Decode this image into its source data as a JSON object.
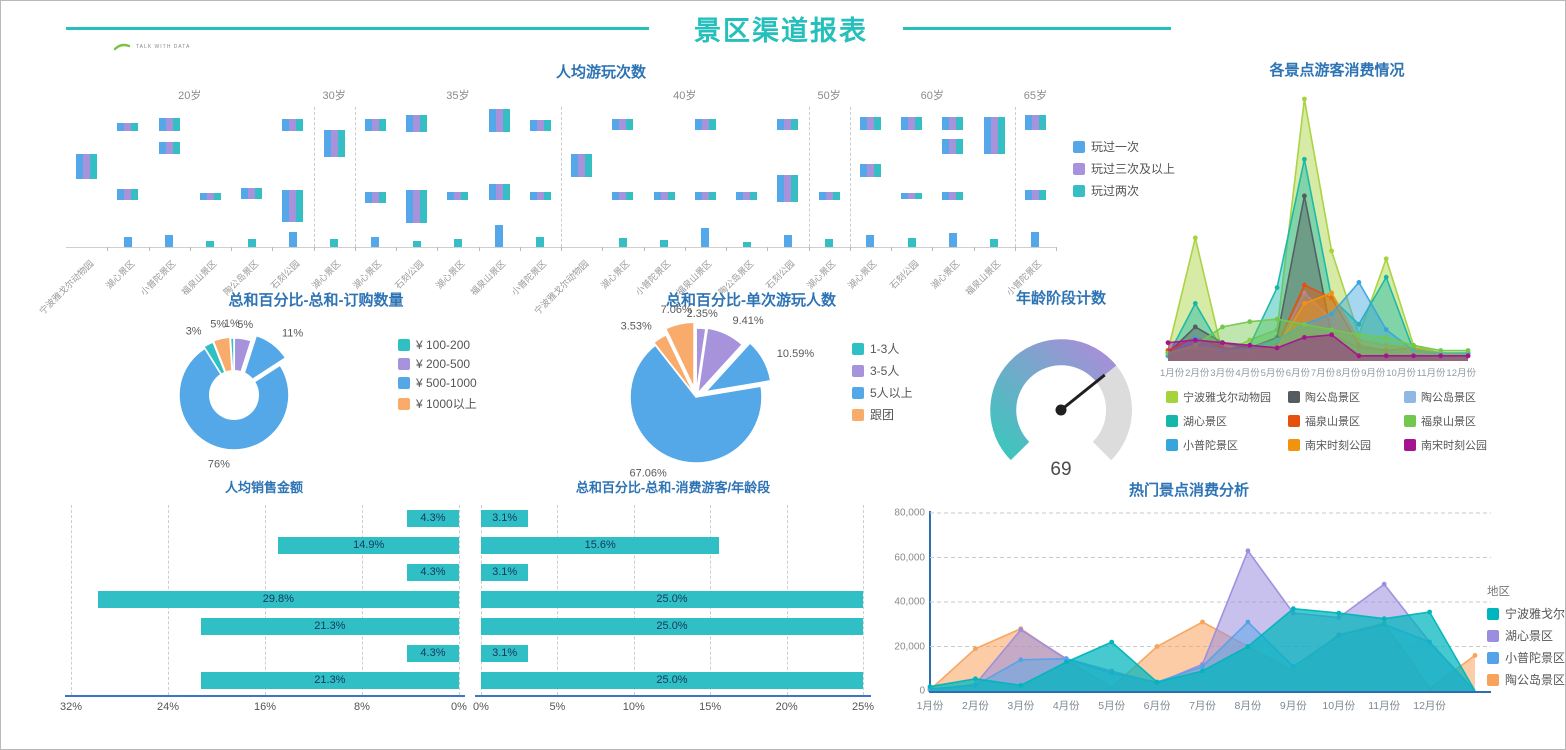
{
  "header": {
    "title": "景区渠道报表",
    "accent_color": "#26c0bc"
  },
  "logo": {
    "text": "TALK WITH DATA"
  },
  "months": [
    "1月份",
    "2月份",
    "3月份",
    "4月份",
    "5月份",
    "6月份",
    "7月份",
    "8月份",
    "9月份",
    "10月份",
    "11月份",
    "12月份"
  ],
  "chart_data": [
    {
      "id": "play-times",
      "type": "bar",
      "title": "人均游玩次数",
      "legend": [
        {
          "label": "玩过一次",
          "color": "#54a7e8"
        },
        {
          "label": "玩过三次及以上",
          "color": "#a693dc"
        },
        {
          "label": "玩过两次",
          "color": "#35bfc4"
        }
      ],
      "age_groups": [
        {
          "label": "20岁",
          "span": 6
        },
        {
          "label": "30岁",
          "span": 1
        },
        {
          "label": "35岁",
          "span": 5
        },
        {
          "label": "40岁",
          "span": 6
        },
        {
          "label": "50岁",
          "span": 1
        },
        {
          "label": "60岁",
          "span": 4
        },
        {
          "label": "65岁",
          "span": 1
        }
      ],
      "categories": [
        "宁波雅戈尔动物园",
        "湖心景区",
        "小普陀景区",
        "福泉山景区",
        "陶公岛景区",
        "石刻公园",
        "湖心景区",
        "湖心景区",
        "石刻公园",
        "湖心景区",
        "福泉山景区",
        "小普陀景区",
        "宁波雅戈尔动物园",
        "湖心景区",
        "小普陀景区",
        "福泉山景区",
        "陶公岛景区",
        "石刻公园",
        "湖心景区",
        "湖心景区",
        "石刻公园",
        "湖心景区",
        "福泉山景区",
        "小普陀景区"
      ],
      "clusters": [
        {
          "bars": [
            [
              47,
              25
            ]
          ]
        },
        {
          "bars": [
            [
              16,
              8
            ],
            [
              82,
              11
            ]
          ],
          "low": [
            "b",
            10
          ]
        },
        {
          "bars": [
            [
              11,
              13
            ],
            [
              35,
              12
            ]
          ],
          "low": [
            "b",
            12
          ]
        },
        {
          "bars": [
            [
              86,
              7
            ]
          ],
          "low": [
            "t",
            6
          ]
        },
        {
          "bars": [
            [
              81,
              11
            ]
          ],
          "low": [
            "t",
            8
          ]
        },
        {
          "bars": [
            [
              12,
              12
            ],
            [
              83,
              32
            ]
          ],
          "low": [
            "b",
            15
          ]
        },
        {
          "bars": [
            [
              23,
              27
            ]
          ],
          "low": [
            "t",
            8
          ]
        },
        {
          "bars": [
            [
              12,
              12
            ],
            [
              85,
              11
            ]
          ],
          "low": [
            "b",
            10
          ]
        },
        {
          "bars": [
            [
              8,
              17
            ],
            [
              83,
              33
            ]
          ],
          "low": [
            "t",
            6
          ]
        },
        {
          "bars": [
            [
              85,
              8
            ]
          ],
          "low": [
            "t",
            8
          ]
        },
        {
          "bars": [
            [
              2,
              23
            ],
            [
              77,
              16
            ]
          ],
          "low": [
            "b",
            22
          ]
        },
        {
          "bars": [
            [
              13,
              11
            ],
            [
              85,
              8
            ]
          ],
          "low": [
            "t",
            10
          ]
        },
        {
          "bars": [
            [
              47,
              23
            ]
          ]
        },
        {
          "bars": [
            [
              12,
              11
            ],
            [
              85,
              8
            ]
          ],
          "low": [
            "t",
            9
          ]
        },
        {
          "bars": [
            [
              85,
              8
            ]
          ],
          "low": [
            "t",
            7
          ]
        },
        {
          "bars": [
            [
              12,
              11
            ],
            [
              85,
              8
            ]
          ],
          "low": [
            "b",
            19
          ]
        },
        {
          "bars": [
            [
              85,
              8
            ]
          ],
          "low": [
            "t",
            5
          ]
        },
        {
          "bars": [
            [
              12,
              11
            ],
            [
              68,
              27
            ]
          ],
          "low": [
            "b",
            12
          ]
        },
        {
          "bars": [
            [
              85,
              8
            ]
          ],
          "low": [
            "t",
            8
          ]
        },
        {
          "bars": [
            [
              10,
              13
            ],
            [
              57,
              13
            ]
          ],
          "low": [
            "b",
            12
          ]
        },
        {
          "bars": [
            [
              10,
              13
            ],
            [
              86,
              6
            ]
          ],
          "low": [
            "t",
            9
          ]
        },
        {
          "bars": [
            [
              10,
              13
            ],
            [
              32,
              15
            ],
            [
              85,
              8
            ]
          ],
          "low": [
            "b",
            14
          ]
        },
        {
          "bars": [
            [
              10,
              13
            ],
            [
              23,
              24
            ]
          ],
          "low": [
            "t",
            8
          ]
        },
        {
          "bars": [
            [
              8,
              15
            ],
            [
              83,
              10
            ]
          ],
          "low": [
            "b",
            15
          ]
        }
      ]
    },
    {
      "id": "scenic-consumption",
      "type": "area",
      "title": "各景点游客消费情况",
      "ylim": [
        0,
        100
      ],
      "grid": false,
      "legend_position": "bottom",
      "series": [
        {
          "name": "宁波雅戈尔动物园",
          "color": "#a6d23c",
          "values": [
            4,
            47,
            3,
            8,
            12,
            100,
            42,
            10,
            39,
            6,
            3,
            3
          ]
        },
        {
          "name": "湖心景区",
          "color": "#16b7a8",
          "values": [
            2,
            22,
            4,
            6,
            28,
            77,
            24,
            14,
            32,
            4,
            2,
            3
          ]
        },
        {
          "name": "陶公岛景区",
          "color": "#565b60",
          "values": [
            3,
            13,
            7,
            5,
            9,
            63,
            10,
            5,
            4,
            3,
            2,
            2
          ]
        },
        {
          "name": "陶公岛景区",
          "color": "#8fb9e4",
          "values": [
            2,
            6,
            4,
            4,
            5,
            26,
            16,
            6,
            4,
            3,
            2,
            2
          ]
        },
        {
          "name": "福泉山景区",
          "color": "#e6500f",
          "values": [
            4,
            9,
            5,
            4,
            6,
            29,
            24,
            6,
            4,
            5,
            2,
            2
          ]
        },
        {
          "name": "南宋时刻公园",
          "color": "#f2930d",
          "values": [
            3,
            5,
            4,
            4,
            5,
            22,
            26,
            8,
            6,
            5,
            3,
            2
          ]
        },
        {
          "name": "小普陀景区",
          "color": "#39a5dd",
          "values": [
            2,
            9,
            4,
            5,
            8,
            14,
            18,
            30,
            12,
            4,
            3,
            3
          ]
        },
        {
          "name": "福泉山景区",
          "color": "#72c84e",
          "values": [
            3,
            6,
            13,
            15,
            16,
            14,
            12,
            10,
            9,
            6,
            4,
            4
          ]
        },
        {
          "name": "南宋时刻公园",
          "color": "#a4148e",
          "values": [
            7,
            8,
            7,
            6,
            5,
            9,
            10,
            2,
            2,
            2,
            2,
            2
          ]
        }
      ],
      "legend": [
        {
          "label": "宁波雅戈尔动物园",
          "color": "#a6d23c"
        },
        {
          "label": "陶公岛景区",
          "color": "#565b60"
        },
        {
          "label": "陶公岛景区",
          "color": "#8fb9e4"
        },
        {
          "label": "湖心景区",
          "color": "#16b7a8"
        },
        {
          "label": "福泉山景区",
          "color": "#e6500f"
        },
        {
          "label": "福泉山景区",
          "color": "#72c84e"
        },
        {
          "label": "小普陀景区",
          "color": "#39a5dd"
        },
        {
          "label": "南宋时刻公园",
          "color": "#f2930d"
        },
        {
          "label": "南宋时刻公园",
          "color": "#a4148e"
        }
      ]
    },
    {
      "id": "order-quantity",
      "type": "pie",
      "title": "总和百分比-总和-订购数量",
      "donut": true,
      "slices": [
        {
          "label": "5%",
          "value": 5,
          "color": "#a693dc",
          "explode": 2
        },
        {
          "label": "11%",
          "value": 11,
          "color": "#55a8e8",
          "explode": 9
        },
        {
          "label": "76%",
          "value": 76,
          "color": "#55a8e8",
          "explode": 0
        },
        {
          "label": "3%",
          "value": 3,
          "color": "#2ec0c2",
          "explode": 2
        },
        {
          "label": "5%",
          "value": 5,
          "color": "#f8ab6b",
          "explode": 3
        },
        {
          "label": "1%",
          "value": 1,
          "color": "#2ec0c2",
          "explode": 2
        }
      ],
      "legend": [
        {
          "label": "¥ 100-200",
          "color": "#2ec0c2"
        },
        {
          "label": "¥ 200-500",
          "color": "#a693dc"
        },
        {
          "label": "¥ 500-1000",
          "color": "#55a8e8"
        },
        {
          "label": "¥ 1000以上",
          "color": "#f8ab6b"
        }
      ]
    },
    {
      "id": "single-visit-people",
      "type": "pie",
      "title": "总和百分比-单次游玩人数",
      "donut": false,
      "slices": [
        {
          "label": "2.35%",
          "value": 2.35,
          "color": "#a693dc",
          "explode": 3
        },
        {
          "label": "9.41%",
          "value": 9.41,
          "color": "#a693dc",
          "explode": 4
        },
        {
          "label": "10.59%",
          "value": 10.59,
          "color": "#55a8e8",
          "explode": 11
        },
        {
          "label": "67.06%",
          "value": 67.06,
          "color": "#55a8e8",
          "explode": 0
        },
        {
          "label": "3.53%",
          "value": 3.53,
          "color": "#f8ab6b",
          "explode": 3
        },
        {
          "label": "7.06%",
          "value": 7.06,
          "color": "#f8ab6b",
          "explode": 9
        }
      ],
      "legend": [
        {
          "label": "1-3人",
          "color": "#2ec0c2"
        },
        {
          "label": "3-5人",
          "color": "#a693dc"
        },
        {
          "label": "5人以上",
          "color": "#55a8e8"
        },
        {
          "label": "跟团",
          "color": "#f8ab6b"
        }
      ]
    },
    {
      "id": "age-gauge",
      "type": "gauge",
      "title": "年龄阶段计数",
      "value": 69,
      "colors": {
        "start": "#3fc4bd",
        "end": "#a78fd8",
        "rest": "#dcdcdc",
        "needle": "#1f1f1f"
      }
    },
    {
      "id": "per-capita-sales",
      "type": "bar",
      "title": "人均销售金额",
      "color": "#30bfc4",
      "xmax": 32,
      "reversed": true,
      "values": [
        4.3,
        14.9,
        4.3,
        29.8,
        21.3,
        4.3,
        21.3
      ],
      "labels": [
        "4.3%",
        "14.9%",
        "4.3%",
        "29.8%",
        "21.3%",
        "4.3%",
        "21.3%"
      ],
      "axis": [
        "32%",
        "24%",
        "16%",
        "8%",
        "0%"
      ]
    },
    {
      "id": "consume-by-age",
      "type": "bar",
      "title": "总和百分比-总和-消费游客/年龄段",
      "color": "#30bfc4",
      "xmax": 25,
      "reversed": false,
      "values": [
        3.1,
        15.6,
        3.1,
        25.0,
        25.0,
        3.1,
        25.0
      ],
      "labels": [
        "3.1%",
        "15.6%",
        "3.1%",
        "25.0%",
        "25.0%",
        "3.1%",
        "25.0%"
      ],
      "axis": [
        "0%",
        "5%",
        "10%",
        "15%",
        "20%",
        "25%"
      ]
    },
    {
      "id": "hot-spot-consumption",
      "type": "area",
      "title": "热门景点消费分析",
      "legend_title": "地区",
      "ylim": [
        0,
        80000
      ],
      "grid": true,
      "ylabels": [
        "0",
        "20,000",
        "40,000",
        "60,000",
        "80,000"
      ],
      "series": [
        {
          "name": "宁波雅戈尔动物园",
          "color": "#00b5bd",
          "fill_opacity": 0.72,
          "values": [
            2000,
            5500,
            2500,
            13000,
            22000,
            4000,
            9000,
            20000,
            37000,
            35000,
            32500,
            35500,
            0
          ]
        },
        {
          "name": "湖心景区",
          "color": "#9b8ede",
          "fill_opacity": 0.55,
          "values": [
            500,
            3000,
            27500,
            14500,
            9000,
            3500,
            12000,
            63000,
            35000,
            33000,
            48000,
            22000,
            0
          ]
        },
        {
          "name": "小普陀景区",
          "color": "#54a3e8",
          "fill_opacity": 0.5,
          "values": [
            1000,
            2500,
            14000,
            14500,
            8000,
            4000,
            11000,
            31000,
            11000,
            25000,
            30000,
            22000,
            0
          ]
        },
        {
          "name": "陶公岛景区",
          "color": "#f7a35c",
          "fill_opacity": 0.55,
          "values": [
            500,
            19000,
            28000,
            14000,
            1500,
            20000,
            31000,
            20000,
            9000,
            25500,
            30500,
            1000,
            16000
          ]
        }
      ],
      "legend": [
        {
          "label": "宁波雅戈尔动物园",
          "color": "#00b5bd"
        },
        {
          "label": "湖心景区",
          "color": "#9b8ede"
        },
        {
          "label": "小普陀景区",
          "color": "#54a3e8"
        },
        {
          "label": "陶公岛景区",
          "color": "#f7a35c"
        }
      ]
    }
  ]
}
